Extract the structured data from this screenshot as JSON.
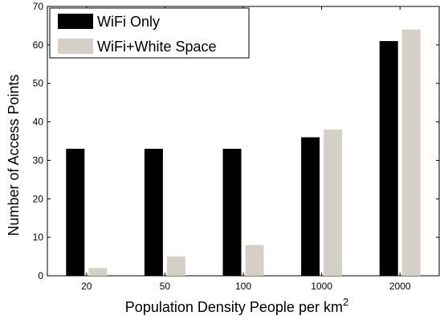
{
  "chart_data": {
    "type": "bar",
    "categories": [
      "20",
      "50",
      "100",
      "1000",
      "2000"
    ],
    "series": [
      {
        "name": "WiFi Only",
        "values": [
          33,
          33,
          33,
          36,
          61
        ],
        "color": "#000000"
      },
      {
        "name": "WiFi+White Space",
        "values": [
          2,
          5,
          8,
          38,
          64
        ],
        "color": "#d4d0c8"
      }
    ],
    "title": "",
    "xlabel": "Population Density People per km",
    "xlabel_superscript": "2",
    "ylabel": "Number of Access Points",
    "ylim": [
      0,
      70
    ],
    "yticks": [
      0,
      10,
      20,
      30,
      40,
      50,
      60,
      70
    ],
    "grid": false,
    "legend_position": "top-left"
  }
}
